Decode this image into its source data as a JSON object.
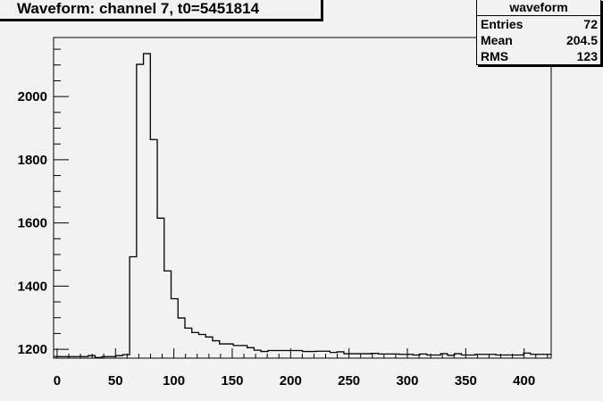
{
  "title": "Waveform: channel 7, t0=5451814",
  "stats": {
    "name": "waveform",
    "rows": [
      {
        "label": "Entries",
        "value": "72"
      },
      {
        "label": "Mean",
        "value": "204.5"
      },
      {
        "label": "RMS",
        "value": "123"
      }
    ]
  },
  "chart_data": {
    "type": "bar",
    "title": "Waveform: channel 7, t0=5451814",
    "xlabel": "",
    "ylabel": "",
    "xlim": [
      -3,
      423.2
    ],
    "ylim": [
      1172,
      2187
    ],
    "bin_width": 5.92,
    "xticks": [
      0,
      50,
      100,
      150,
      200,
      250,
      300,
      350,
      400
    ],
    "yticks": [
      1200,
      1400,
      1600,
      1800,
      2000
    ],
    "grid": false,
    "legend": "top-right stats box",
    "values": [
      1177,
      1177,
      1177,
      1177,
      1177,
      1180,
      1174,
      1177,
      1177,
      1180,
      1183,
      1493,
      2102,
      2136,
      1864,
      1615,
      1448,
      1360,
      1299,
      1267,
      1253,
      1247,
      1239,
      1227,
      1217,
      1217,
      1212,
      1212,
      1205,
      1197,
      1193,
      1196,
      1196,
      1196,
      1196,
      1196,
      1193,
      1193,
      1194,
      1194,
      1190,
      1192,
      1186,
      1186,
      1186,
      1186,
      1187,
      1185,
      1185,
      1185,
      1184,
      1184,
      1182,
      1185,
      1182,
      1182,
      1186,
      1181,
      1186,
      1182,
      1182,
      1184,
      1184,
      1184,
      1182,
      1182,
      1182,
      1182,
      1188,
      1184,
      1184,
      1184
    ]
  }
}
